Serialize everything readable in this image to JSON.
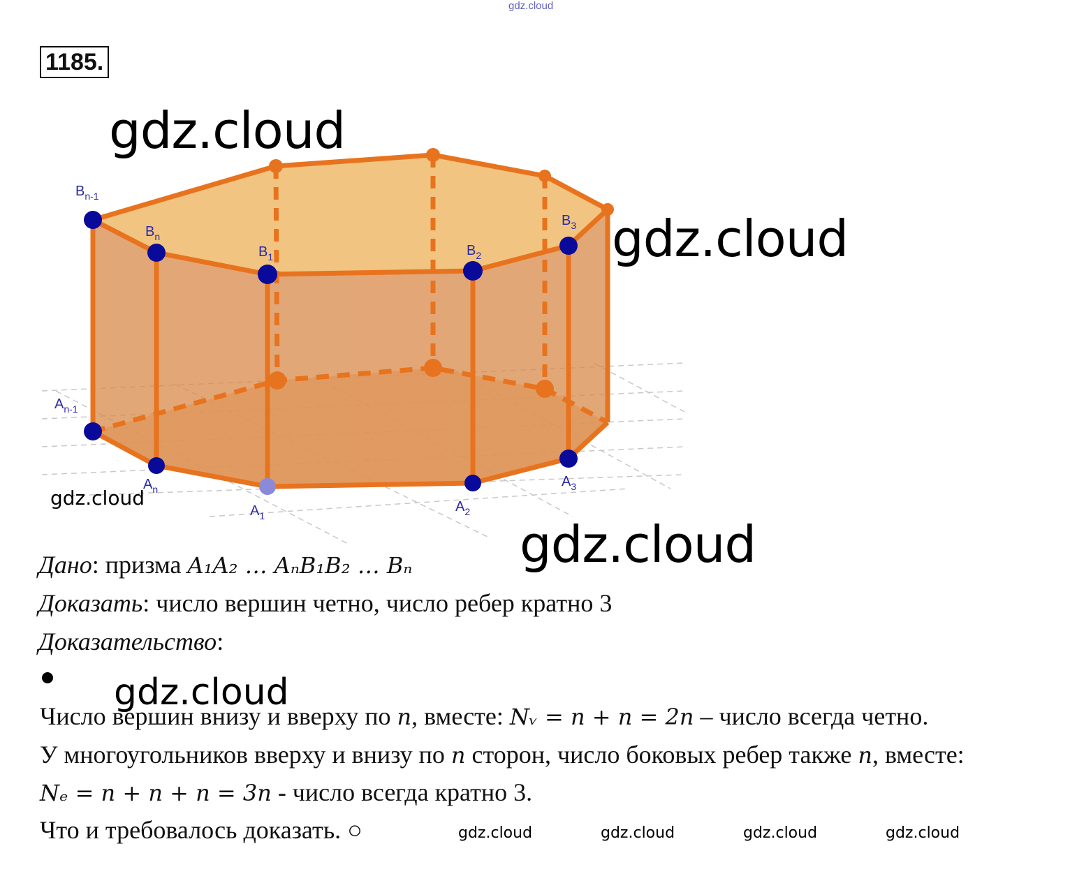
{
  "header": {
    "watermark": "gdz.cloud",
    "problem_number": "1185."
  },
  "figure": {
    "labels": {
      "Bn1": "B",
      "Bn1_sub": "n-1",
      "Bn": "B",
      "Bn_sub": "n",
      "B1": "B",
      "B1_sub": "1",
      "B2": "B",
      "B2_sub": "2",
      "B3": "B",
      "B3_sub": "3",
      "An1": "A",
      "An1_sub": "n-1",
      "An": "A",
      "An_sub": "n",
      "A1": "A",
      "A1_sub": "1",
      "A2": "A",
      "A2_sub": "2",
      "A3": "A",
      "A3_sub": "3"
    },
    "colors": {
      "edge": "#e8731e",
      "face": "#d98a4a",
      "top": "#f0c27a",
      "vertex": "#0a0a9a"
    }
  },
  "watermarks": [
    "gdz.cloud",
    "gdz.cloud",
    "gdz.cloud",
    "gdz.cloud",
    "gdz.cloud",
    "gdz.cloud",
    "gdz.cloud",
    "gdz.cloud",
    "gdz.cloud"
  ],
  "text": {
    "given_label": "Дано",
    "given_text": ": призма ",
    "given_math": "A₁A₂ … AₙB₁B₂ … Bₙ",
    "prove_label": "Доказать",
    "prove_text": ": число вершин четно, число ребер кратно 3",
    "proof_label": "Доказательство",
    "proof_colon": ":",
    "line1_a": "Число вершин внизу и вверху по ",
    "line1_n": "n",
    "line1_b": ", вместе: ",
    "line1_math": "Nᵥ = n + n = 2n",
    "line1_c": " – число всегда четно.",
    "line2_a": "У многоугольников вверху и внизу по ",
    "line2_n": "n",
    "line2_b": " сторон, число боковых ребер также  ",
    "line2_n2": "n",
    "line2_c": ", вместе:",
    "line3_math": "Nₑ = n + n + n = 3n",
    "line3_b": " - число всегда кратно 3.",
    "line4": "Что и требовалось доказать. ○"
  }
}
